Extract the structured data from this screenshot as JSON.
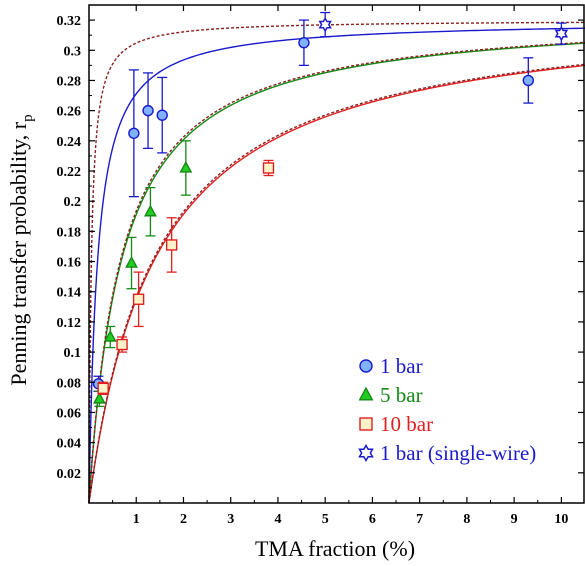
{
  "chart_data": {
    "type": "scatter",
    "xlabel": "TMA fraction (%)",
    "ylabel_main": "Penning transfer probability, r",
    "ylabel_sub": "p",
    "xlim": [
      0,
      10.5
    ],
    "ylim": [
      0,
      0.33
    ],
    "xticks": [
      1,
      2,
      3,
      4,
      5,
      6,
      7,
      8,
      9,
      10
    ],
    "xtick_labels": [
      "1",
      "2",
      "3",
      "4",
      "5",
      "6",
      "7",
      "8",
      "9",
      "10"
    ],
    "yticks": [
      0.02,
      0.04,
      0.06,
      0.08,
      0.1,
      0.12,
      0.14,
      0.16,
      0.18,
      0.2,
      0.22,
      0.24,
      0.26,
      0.28,
      0.3,
      0.32
    ],
    "ytick_labels": [
      "0.02",
      "0.04",
      "0.06",
      "0.08",
      "0.1",
      "0.12",
      "0.14",
      "0.16",
      "0.18",
      "0.2",
      "0.22",
      "0.24",
      "0.26",
      "0.28",
      "0.3",
      "0.32"
    ],
    "grid": false,
    "legend_position": "bottom-right",
    "series": [
      {
        "name": "1 bar",
        "marker": "circle",
        "color": "#1a1acc",
        "fill": "#7fb2ff",
        "points": [
          {
            "x": 0.2,
            "y": 0.079,
            "err": 0.005
          },
          {
            "x": 0.95,
            "y": 0.245,
            "err": 0.042
          },
          {
            "x": 1.25,
            "y": 0.26,
            "err": 0.025
          },
          {
            "x": 1.55,
            "y": 0.257,
            "err": 0.025
          },
          {
            "x": 4.55,
            "y": 0.305,
            "err": 0.015
          },
          {
            "x": 9.3,
            "y": 0.28,
            "err": 0.015
          }
        ]
      },
      {
        "name": "5 bar",
        "marker": "triangle",
        "color": "#148a14",
        "fill": "#22cc22",
        "points": [
          {
            "x": 0.22,
            "y": 0.069,
            "err": 0.005
          },
          {
            "x": 0.45,
            "y": 0.11,
            "err": 0.007
          },
          {
            "x": 0.9,
            "y": 0.159,
            "err": 0.017
          },
          {
            "x": 1.3,
            "y": 0.193,
            "err": 0.016
          },
          {
            "x": 2.05,
            "y": 0.222,
            "err": 0.018
          }
        ]
      },
      {
        "name": "10 bar",
        "marker": "square",
        "color": "#e02020",
        "fill": "#fff2c8",
        "points": [
          {
            "x": 0.3,
            "y": 0.076,
            "err": 0.004
          },
          {
            "x": 0.7,
            "y": 0.105,
            "err": 0.005
          },
          {
            "x": 1.05,
            "y": 0.135,
            "err": 0.018
          },
          {
            "x": 1.75,
            "y": 0.171,
            "err": 0.018
          },
          {
            "x": 3.8,
            "y": 0.222,
            "err": 0.005
          }
        ]
      },
      {
        "name": "1 bar (single-wire)",
        "marker": "star",
        "color": "#1a1acc",
        "fill": "#ffffff",
        "points": [
          {
            "x": 5.0,
            "y": 0.317,
            "err": 0.008
          },
          {
            "x": 10.0,
            "y": 0.311,
            "err": 0.007
          }
        ]
      }
    ],
    "fit_curves": [
      {
        "a": 0.32,
        "b": 0.18,
        "color": "#1a1acc",
        "dashed": false
      },
      {
        "a": 0.32,
        "b": 0.05,
        "color": "#8b2020",
        "dashed": true
      },
      {
        "a": 0.325,
        "b": 0.7,
        "color": "#148a14",
        "dashed": false
      },
      {
        "a": 0.325,
        "b": 0.68,
        "color": "#8b2020",
        "dashed": true
      },
      {
        "a": 0.33,
        "b": 1.45,
        "color": "#e02020",
        "dashed": false
      },
      {
        "a": 0.33,
        "b": 1.42,
        "color": "#8b2020",
        "dashed": true
      }
    ]
  }
}
